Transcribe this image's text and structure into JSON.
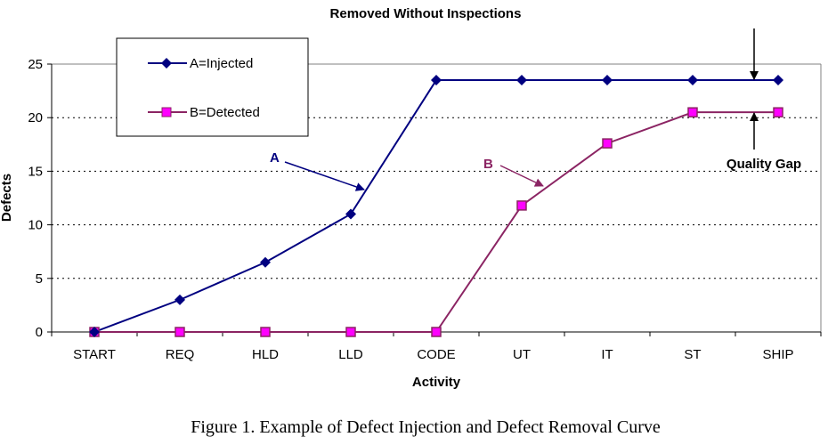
{
  "chart_data": {
    "type": "line",
    "title": "",
    "xlabel": "Activity",
    "ylabel": "Defects",
    "ylim": [
      0,
      25
    ],
    "yticks": [
      0,
      5,
      10,
      15,
      20,
      25
    ],
    "grid": "horizontal-dotted",
    "legend_position": "top-left",
    "categories": [
      "START",
      "REQ",
      "HLD",
      "LLD",
      "CODE",
      "UT",
      "IT",
      "ST",
      "SHIP"
    ],
    "series": [
      {
        "name": "A=Injected",
        "color": "#000080",
        "marker": "diamond",
        "values": [
          0,
          3,
          6.5,
          11,
          23.5,
          23.5,
          23.5,
          23.5,
          23.5
        ]
      },
      {
        "name": "B=Detected",
        "color": "#8B2463",
        "marker": "square",
        "marker_fill": "#FF00FF",
        "values": [
          0,
          0,
          0,
          0,
          0,
          11.8,
          17.6,
          20.5,
          20.5
        ]
      }
    ],
    "annotations": {
      "removed_without_inspections": "Removed Without Inspections",
      "quality_gap": "Quality Gap",
      "label_a": "A",
      "label_b": "B"
    }
  },
  "caption": "Figure 1. Example of Defect Injection and Defect Removal Curve"
}
